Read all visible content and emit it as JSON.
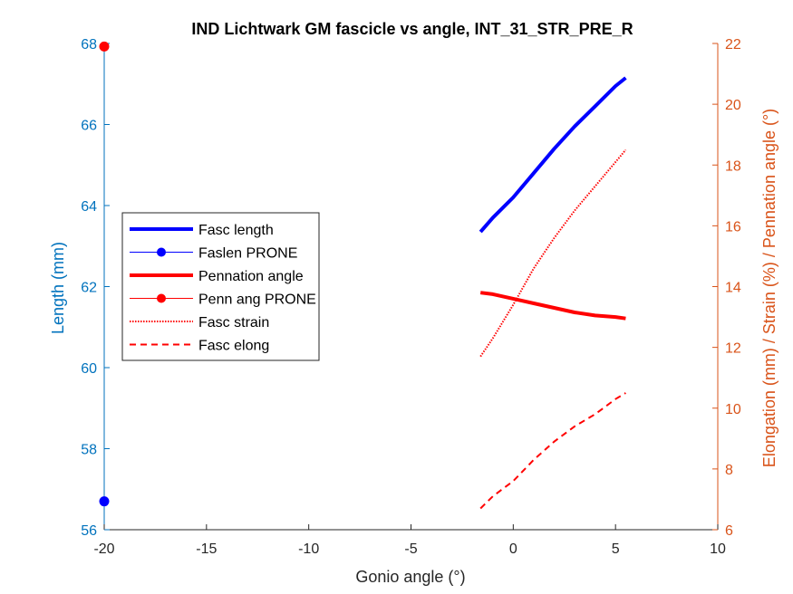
{
  "chart_data": {
    "type": "line",
    "title": "IND Lichtwark GM fascicle vs angle, INT_31_STR_PRE_R",
    "xlabel": "Gonio angle (°)",
    "ylabel_left": "Length (mm)",
    "ylabel_right": "Elongation (mm) / Strain (%) / Pennation angle (°)",
    "xlim": [
      -20,
      10
    ],
    "ylim_left": [
      56,
      68
    ],
    "ylim_right": [
      6,
      22
    ],
    "xticks": [
      "-20",
      "-15",
      "-10",
      "-5",
      "0",
      "5",
      "10"
    ],
    "yticks_left": [
      "56",
      "58",
      "60",
      "62",
      "64",
      "66",
      "68"
    ],
    "yticks_right": [
      "6",
      "8",
      "10",
      "12",
      "14",
      "16",
      "18",
      "20",
      "22"
    ],
    "legend_position": "middle-left",
    "series": [
      {
        "name": "Fasc length",
        "axis": "left",
        "color": "#0000ff",
        "style": "solid-thick",
        "x": [
          -1.6,
          -1,
          0,
          1,
          2,
          3,
          4,
          5,
          5.5
        ],
        "y": [
          63.35,
          63.7,
          64.2,
          64.8,
          65.4,
          65.95,
          66.45,
          66.95,
          67.15
        ]
      },
      {
        "name": "Faslen PRONE",
        "axis": "left",
        "color": "#0000ff",
        "style": "marker",
        "x": [
          -20
        ],
        "y": [
          56.7
        ]
      },
      {
        "name": "Pennation angle",
        "axis": "right",
        "color": "#ff0000",
        "style": "solid-thick",
        "x": [
          -1.6,
          -1,
          0,
          1,
          2,
          3,
          4,
          5,
          5.5
        ],
        "y": [
          13.8,
          13.75,
          13.6,
          13.45,
          13.3,
          13.15,
          13.05,
          13.0,
          12.95
        ]
      },
      {
        "name": "Penn ang PRONE",
        "axis": "right",
        "color": "#ff0000",
        "style": "marker",
        "x": [
          -20
        ],
        "y": [
          21.9
        ]
      },
      {
        "name": "Fasc strain",
        "axis": "right",
        "color": "#ff0000",
        "style": "dotted",
        "x": [
          -1.6,
          -1,
          0,
          1,
          2,
          3,
          4,
          5,
          5.5
        ],
        "y": [
          11.7,
          12.3,
          13.4,
          14.6,
          15.6,
          16.5,
          17.3,
          18.1,
          18.5
        ]
      },
      {
        "name": "Fasc elong",
        "axis": "right",
        "color": "#ff0000",
        "style": "dashed",
        "x": [
          -1.6,
          -1,
          0,
          1,
          2,
          3,
          4,
          5,
          5.5
        ],
        "y": [
          6.7,
          7.1,
          7.6,
          8.3,
          8.9,
          9.4,
          9.8,
          10.3,
          10.5
        ]
      }
    ]
  }
}
